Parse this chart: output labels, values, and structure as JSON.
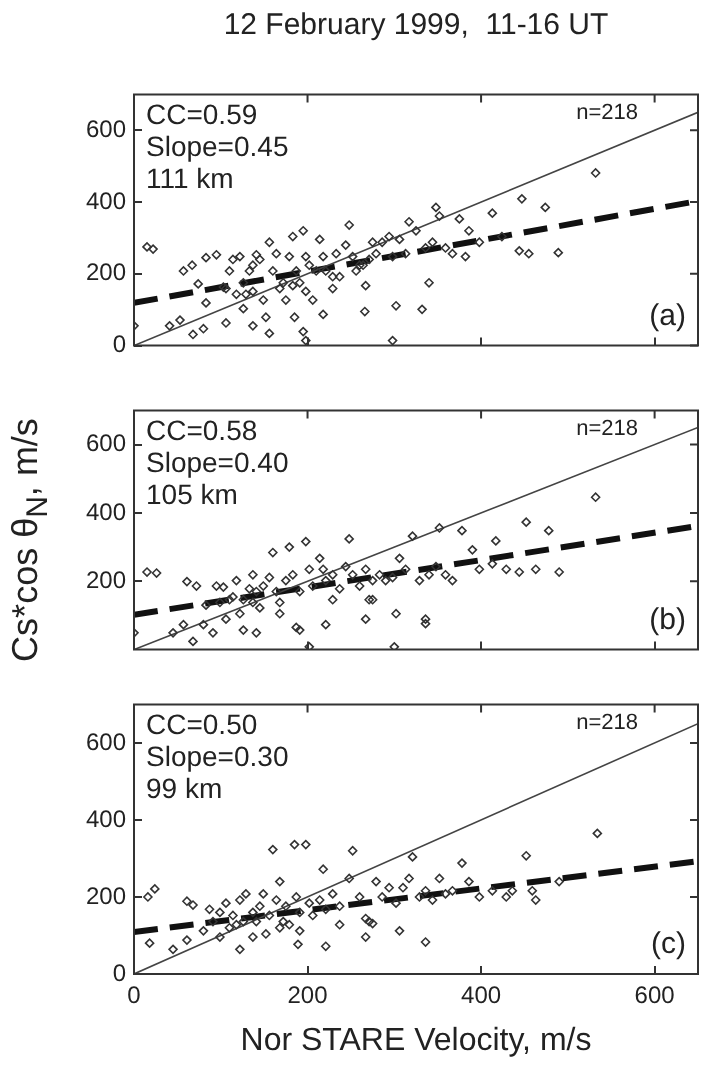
{
  "chart_data": [
    {
      "type": "scatter",
      "title": "12 February 1999,  11-16 UT",
      "xlim": [
        0,
        650
      ],
      "ylim": [
        0,
        700
      ],
      "xticks": [
        0,
        200,
        400,
        600
      ],
      "yticks": [
        0,
        200,
        400,
        600
      ],
      "tick_labels": "y",
      "grid": false,
      "legend": false,
      "annotations": [
        "CC=0.59",
        "Slope=0.45",
        "111 km",
        "n=218",
        "(a)"
      ],
      "series": [
        {
          "type": "scatter",
          "marker": "diamond",
          "color": "#333333",
          "x": [
            15,
            22,
            57,
            67,
            74,
            83,
            95,
            103,
            110,
            114,
            122,
            126,
            129,
            133,
            137,
            141,
            145,
            149,
            152,
            156,
            160,
            164,
            168,
            172,
            179,
            183,
            187,
            191,
            195,
            198,
            202,
            206,
            210,
            214,
            218,
            221,
            229,
            233,
            237,
            244,
            248,
            252,
            256,
            264,
            267,
            271,
            275,
            279,
            286,
            294,
            298,
            302,
            306,
            313,
            317,
            325,
            332,
            336,
            340,
            344,
            348,
            352,
            359,
            367,
            375,
            382,
            386,
            398,
            413,
            424,
            444,
            447,
            455,
            474,
            489,
            532,
            0,
            41,
            53,
            68,
            80,
            106,
            126,
            137,
            156,
            185,
            195,
            198,
            218,
            266,
            298,
            83,
            106,
            118,
            137,
            175,
            183,
            198,
            229,
            260
          ],
          "values": [
            275,
            269,
            208,
            224,
            172,
            245,
            253,
            163,
            208,
            240,
            248,
            175,
            143,
            208,
            224,
            253,
            240,
            127,
            79,
            288,
            208,
            256,
            159,
            175,
            248,
            304,
            208,
            175,
            320,
            248,
            224,
            127,
            208,
            296,
            248,
            208,
            159,
            256,
            192,
            280,
            336,
            248,
            208,
            224,
            167,
            240,
            288,
            256,
            288,
            304,
            248,
            111,
            296,
            256,
            345,
            320,
            101,
            272,
            175,
            288,
            385,
            361,
            272,
            256,
            353,
            248,
            320,
            288,
            369,
            304,
            264,
            409,
            256,
            385,
            259,
            481,
            55,
            55,
            71,
            31,
            47,
            63,
            103,
            55,
            34,
            79,
            39,
            14,
            87,
            95,
            14,
            119,
            159,
            143,
            151,
            127,
            167,
            151,
            192,
            224
          ]
        },
        {
          "type": "line",
          "marker": "none",
          "line_style": "solid",
          "color": "#444444",
          "x": [
            0,
            650
          ],
          "values": [
            0,
            650
          ]
        },
        {
          "type": "line",
          "marker": "none",
          "line_style": "dashed",
          "color": "#111111",
          "x": [
            0,
            650
          ],
          "values": [
            119,
            403
          ]
        }
      ]
    },
    {
      "type": "scatter",
      "ylabel": "Cs*cos θ$_{N}$, m/s",
      "xlim": [
        0,
        650
      ],
      "ylim": [
        0,
        700
      ],
      "xticks": [
        0,
        200,
        400,
        600
      ],
      "yticks": [
        200,
        400,
        600
      ],
      "tick_labels": "y",
      "grid": false,
      "legend": false,
      "annotations": [
        "CC=0.58",
        "Slope=0.40",
        "105 km",
        "n=218",
        "(b)"
      ],
      "series": [
        {
          "type": "scatter",
          "marker": "diamond",
          "color": "#333333",
          "x": [
            15,
            26,
            61,
            72,
            95,
            99,
            103,
            114,
            118,
            122,
            126,
            133,
            137,
            141,
            145,
            149,
            156,
            160,
            164,
            168,
            175,
            179,
            183,
            191,
            198,
            202,
            206,
            214,
            218,
            221,
            229,
            237,
            244,
            248,
            252,
            260,
            267,
            271,
            275,
            283,
            290,
            298,
            302,
            306,
            313,
            321,
            329,
            336,
            340,
            348,
            352,
            359,
            367,
            378,
            390,
            398,
            413,
            417,
            429,
            444,
            452,
            463,
            478,
            490,
            532,
            0,
            45,
            57,
            68,
            80,
            91,
            106,
            126,
            141,
            187,
            202,
            221,
            267,
            300,
            336,
            83,
            110,
            137,
            168,
            191,
            229,
            275
          ],
          "values": [
            227,
            224,
            199,
            186,
            186,
            138,
            183,
            154,
            202,
            105,
            146,
            178,
            219,
            170,
            122,
            186,
            211,
            284,
            170,
            138,
            202,
            300,
            219,
            170,
            316,
            235,
            186,
            267,
            235,
            202,
            219,
            178,
            243,
            324,
            219,
            186,
            235,
            146,
            202,
            219,
            202,
            211,
            105,
            267,
            235,
            332,
            202,
            89,
            219,
            243,
            356,
            219,
            202,
            348,
            292,
            235,
            251,
            318,
            235,
            227,
            373,
            235,
            348,
            227,
            446,
            49,
            49,
            73,
            24,
            73,
            49,
            89,
            57,
            49,
            65,
            8,
            73,
            89,
            8,
            76,
            130,
            146,
            138,
            105,
            57,
            146,
            146
          ]
        },
        {
          "type": "line",
          "marker": "none",
          "line_style": "solid",
          "color": "#444444",
          "x": [
            0,
            650
          ],
          "values": [
            0,
            650
          ]
        },
        {
          "type": "line",
          "marker": "none",
          "line_style": "dashed",
          "color": "#111111",
          "x": [
            0,
            650
          ],
          "values": [
            102,
            362
          ]
        }
      ]
    },
    {
      "type": "scatter",
      "xlabel": "Nor STARE Velocity, m/s",
      "xlim": [
        0,
        650
      ],
      "ylim": [
        0,
        700
      ],
      "xticks": [
        0,
        200,
        400,
        600
      ],
      "yticks": [
        0,
        200,
        400,
        600
      ],
      "grid": false,
      "legend": false,
      "annotations": [
        "CC=0.50",
        "Slope=0.30",
        "99 km",
        "n=218",
        "(c)"
      ],
      "series": [
        {
          "type": "scatter",
          "marker": "diamond",
          "color": "#333333",
          "x": [
            16,
            24,
            61,
            68,
            87,
            99,
            106,
            114,
            122,
            126,
            129,
            137,
            145,
            149,
            156,
            160,
            164,
            168,
            172,
            175,
            185,
            187,
            191,
            198,
            202,
            206,
            214,
            218,
            221,
            229,
            237,
            248,
            252,
            260,
            267,
            271,
            279,
            286,
            294,
            302,
            310,
            317,
            321,
            329,
            336,
            344,
            352,
            359,
            367,
            378,
            386,
            398,
            413,
            429,
            436,
            452,
            459,
            463,
            490,
            534,
            18,
            45,
            61,
            80,
            99,
            110,
            122,
            137,
            152,
            168,
            189,
            191,
            221,
            237,
            267,
            275,
            306,
            336,
            91,
            118,
            141,
            179
          ],
          "values": [
            200,
            221,
            189,
            179,
            168,
            160,
            184,
            152,
            192,
            136,
            208,
            160,
            176,
            208,
            152,
            323,
            192,
            240,
            136,
            176,
            336,
            200,
            160,
            336,
            184,
            152,
            192,
            272,
            168,
            208,
            176,
            248,
            320,
            200,
            144,
            136,
            240,
            200,
            224,
            184,
            224,
            248,
            304,
            200,
            216,
            192,
            248,
            208,
            216,
            288,
            240,
            200,
            216,
            200,
            216,
            307,
            216,
            192,
            240,
            365,
            80,
            64,
            88,
            112,
            96,
            120,
            64,
            96,
            104,
            120,
            77,
            112,
            72,
            128,
            96,
            131,
            112,
            83,
            136,
            128,
            136,
            128
          ]
        },
        {
          "type": "line",
          "marker": "none",
          "line_style": "solid",
          "color": "#444444",
          "x": [
            0,
            650
          ],
          "values": [
            0,
            650
          ]
        },
        {
          "type": "line",
          "marker": "none",
          "line_style": "dashed",
          "color": "#111111",
          "x": [
            0,
            650
          ],
          "values": [
            109,
            293
          ]
        }
      ]
    }
  ]
}
